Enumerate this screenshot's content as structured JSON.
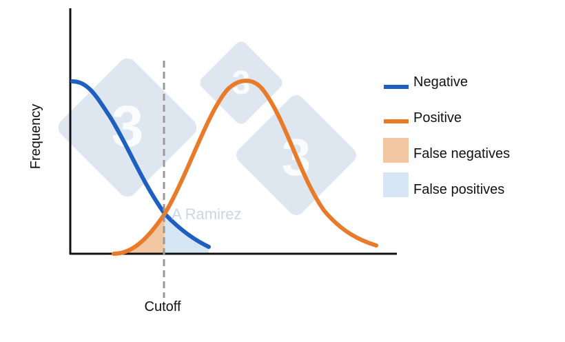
{
  "colors": {
    "negative": "#1f5fbf",
    "positive": "#e87b2a",
    "false_negative_fill": "#f2c6a0",
    "false_positive_fill": "#d6e6f5",
    "axis": "#111111",
    "cutoff": "#999999",
    "watermark": "#dbe5ef"
  },
  "diagram": {
    "ylabel": "Frequency",
    "cutoff_label": "Cutoff",
    "watermark_text": "A Ramirez",
    "watermark_glyph": "3"
  },
  "legend": [
    {
      "key": "negative",
      "label": "Negative",
      "kind": "line",
      "color": "#1f5fbf"
    },
    {
      "key": "positive",
      "label": "Positive",
      "kind": "line",
      "color": "#e87b2a"
    },
    {
      "key": "false_negatives",
      "label": "False negatives",
      "kind": "fill",
      "color": "#f2c6a0"
    },
    {
      "key": "false_positives",
      "label": "False positives",
      "kind": "fill",
      "color": "#d6e6f5"
    }
  ]
}
